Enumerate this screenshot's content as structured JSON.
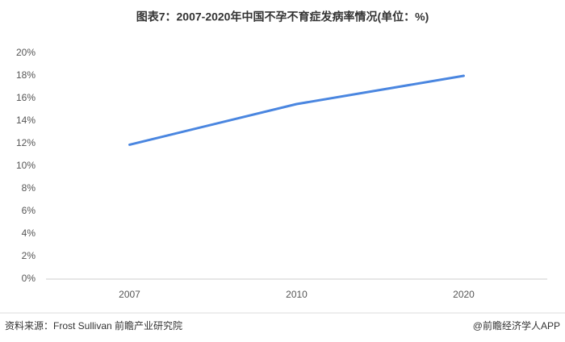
{
  "chart_data": {
    "type": "line",
    "title": "图表7：2007-2020年中国不孕不育症发病率情况(单位：%)",
    "categories": [
      "2007",
      "2010",
      "2020"
    ],
    "values": [
      11.9,
      15.5,
      18.0
    ],
    "color": "#4a86e0",
    "ylim": [
      0,
      20
    ],
    "yticks": [
      {
        "value": 0,
        "label": "0%"
      },
      {
        "value": 2,
        "label": "2%"
      },
      {
        "value": 4,
        "label": "4%"
      },
      {
        "value": 6,
        "label": "6%"
      },
      {
        "value": 8,
        "label": "8%"
      },
      {
        "value": 10,
        "label": "10%"
      },
      {
        "value": 12,
        "label": "12%"
      },
      {
        "value": 14,
        "label": "14%"
      },
      {
        "value": 16,
        "label": "16%"
      },
      {
        "value": 18,
        "label": "18%"
      },
      {
        "value": 20,
        "label": "20%"
      }
    ],
    "grid": false,
    "source": "资料来源：Frost Sullivan 前瞻产业研究院",
    "credit": "@前瞻经济学人APP"
  }
}
